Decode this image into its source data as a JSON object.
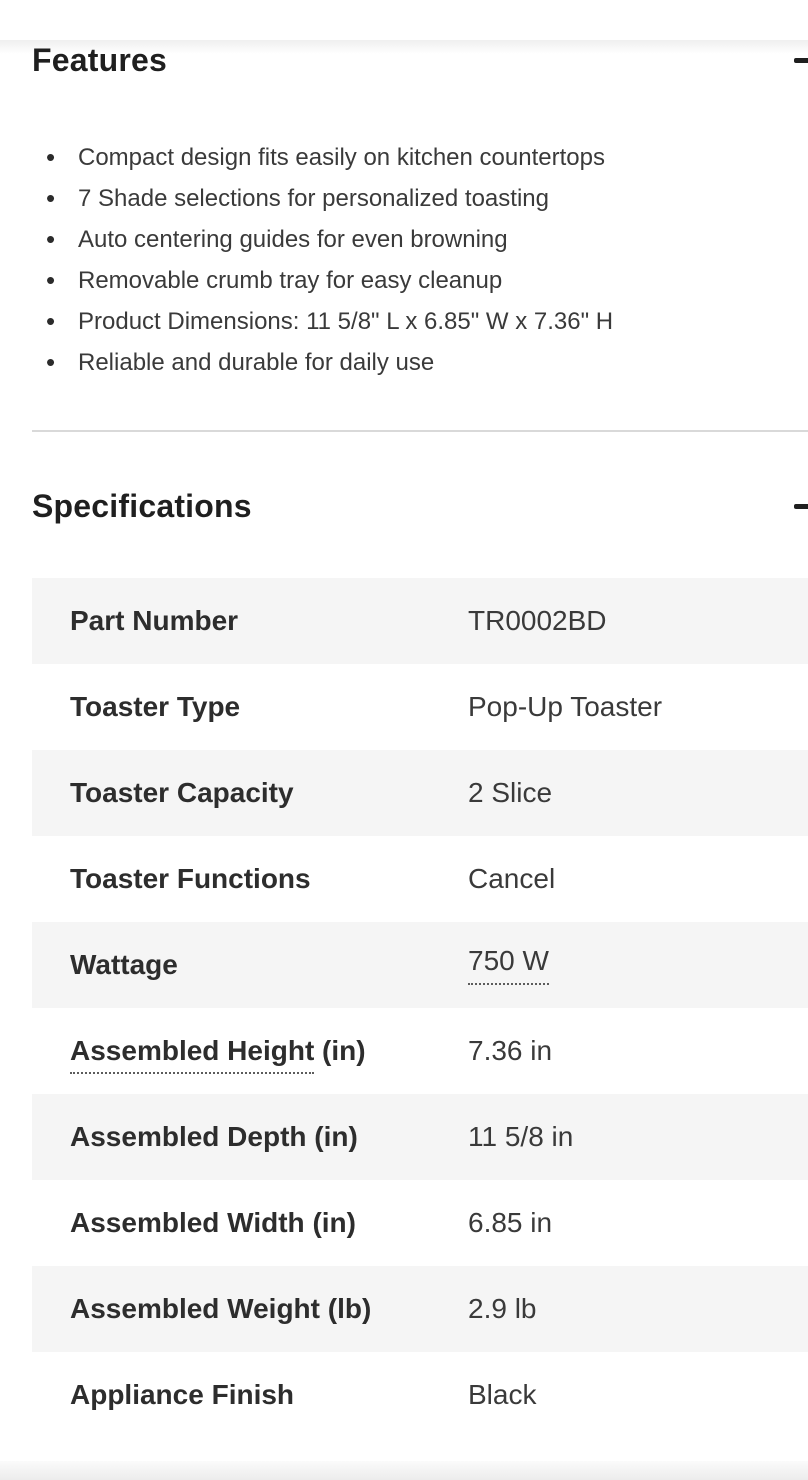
{
  "colors": {
    "heading": "#1f1f1f",
    "body_text": "#3a3a3a",
    "row_alt_bg": "#f5f5f5",
    "divider": "#d9d9d9",
    "dotted_underline": "#5c5c5c"
  },
  "features_section": {
    "title": "Features",
    "collapse_icon": "minus",
    "items": [
      "Compact design fits easily on kitchen countertops",
      "7 Shade selections for personalized toasting",
      "Auto centering guides for even browning",
      "Removable crumb tray for easy cleanup",
      "Product Dimensions: 11 5/8\" L x 6.85\" W x 7.36\" H",
      "Reliable and durable for daily use"
    ]
  },
  "specifications_section": {
    "title": "Specifications",
    "collapse_icon": "minus",
    "rows": [
      {
        "label": "Part Number",
        "suffix": "",
        "value": "TR0002BD"
      },
      {
        "label": "Toaster Type",
        "suffix": "",
        "value": "Pop-Up Toaster"
      },
      {
        "label": "Toaster Capacity",
        "suffix": "",
        "value": "2 Slice"
      },
      {
        "label": "Toaster Functions",
        "suffix": "",
        "value": "Cancel"
      },
      {
        "label": "Wattage",
        "suffix": "",
        "value": "750 W"
      },
      {
        "label": "Assembled Height",
        "suffix": " (in)",
        "value": "7.36 in"
      },
      {
        "label": "Assembled Depth (in)",
        "suffix": "",
        "value": "11 5/8 in"
      },
      {
        "label": "Assembled Width (in)",
        "suffix": "",
        "value": "6.85 in"
      },
      {
        "label": "Assembled Weight (lb)",
        "suffix": "",
        "value": "2.9 lb"
      },
      {
        "label": "Appliance Finish",
        "suffix": "",
        "value": "Black"
      }
    ]
  }
}
